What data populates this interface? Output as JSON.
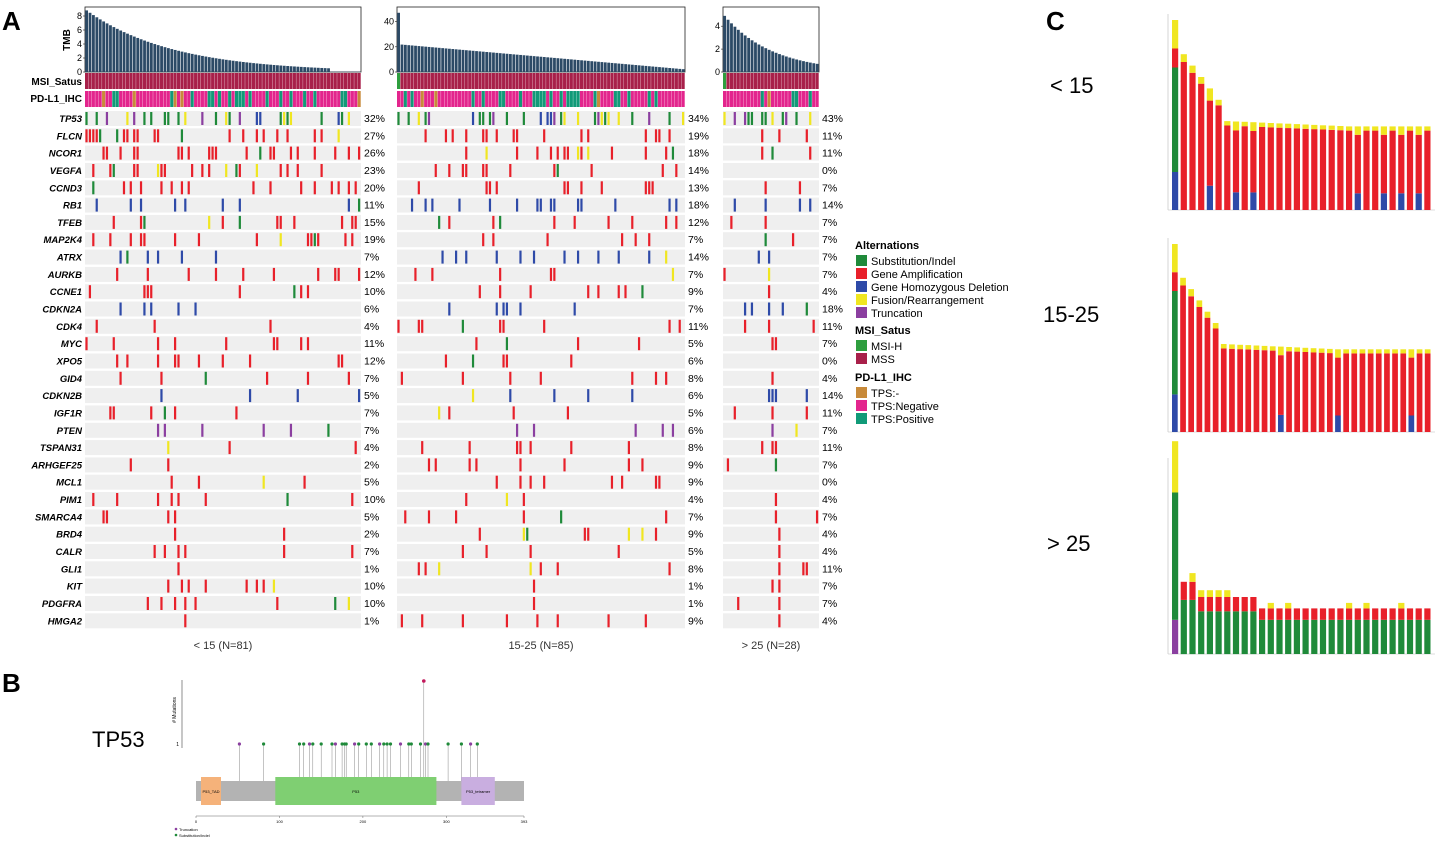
{
  "colors": {
    "substitution": "#1f8a3a",
    "amplification": "#e8202a",
    "deletion": "#2e4aa8",
    "fusion": "#f0e621",
    "truncation": "#8b3fa0",
    "msih": "#2e9e3e",
    "mss": "#a8204a",
    "tps_na": "#c88a3a",
    "tps_neg": "#e3258d",
    "tps_pos": "#119a78",
    "tmb_bar": "#2c4a66",
    "cell_bg": "#efefef"
  },
  "panel_labels": {
    "a": "A",
    "b": "B",
    "c": "C"
  },
  "panel_a": {
    "tmb_label": "TMB",
    "msi_label": "MSI_Satus",
    "pdl1_label": "PD-L1_IHC",
    "groups": [
      {
        "label": "< 15 (N=81)",
        "n": 81,
        "ymax": 9,
        "yticks": [
          "8",
          "6",
          "4",
          "2",
          "0"
        ]
      },
      {
        "label": "15-25 (N=85)",
        "n": 85,
        "ymax": 50,
        "yticks": [
          "40",
          "20",
          "0"
        ]
      },
      {
        "label": "> 25 (N=28)",
        "n": 28,
        "ymax": 5.5,
        "yticks": [
          "4",
          "2",
          "0"
        ]
      }
    ],
    "genes": [
      "TP53",
      "FLCN",
      "NCOR1",
      "VEGFA",
      "CCND3",
      "RB1",
      "TFEB",
      "MAP2K4",
      "ATRX",
      "AURKB",
      "CCNE1",
      "CDKN2A",
      "CDK4",
      "MYC",
      "XPO5",
      "GID4",
      "CDKN2B",
      "IGF1R",
      "PTEN",
      "TSPAN31",
      "ARHGEF25",
      "MCL1",
      "PIM1",
      "SMARCA4",
      "BRD4",
      "CALR",
      "GLI1",
      "KIT",
      "PDGFRA",
      "HMGA2"
    ],
    "pct": [
      [
        "32%",
        "27%",
        "26%",
        "23%",
        "20%",
        "11%",
        "15%",
        "19%",
        "7%",
        "12%",
        "10%",
        "6%",
        "4%",
        "11%",
        "12%",
        "7%",
        "5%",
        "7%",
        "7%",
        "4%",
        "2%",
        "5%",
        "10%",
        "5%",
        "2%",
        "7%",
        "1%",
        "10%",
        "10%",
        "1%"
      ],
      [
        "34%",
        "19%",
        "18%",
        "14%",
        "13%",
        "18%",
        "12%",
        "7%",
        "14%",
        "7%",
        "9%",
        "7%",
        "11%",
        "5%",
        "6%",
        "8%",
        "6%",
        "5%",
        "6%",
        "8%",
        "9%",
        "9%",
        "4%",
        "7%",
        "9%",
        "5%",
        "8%",
        "1%",
        "1%",
        "9%"
      ],
      [
        "43%",
        "11%",
        "11%",
        "0%",
        "7%",
        "14%",
        "7%",
        "7%",
        "7%",
        "7%",
        "4%",
        "18%",
        "11%",
        "7%",
        "0%",
        "4%",
        "14%",
        "11%",
        "7%",
        "11%",
        "7%",
        "0%",
        "4%",
        "7%",
        "4%",
        "4%",
        "11%",
        "7%",
        "7%",
        "4%"
      ]
    ],
    "dominant": [
      "s",
      "a",
      "a",
      "a",
      "a",
      "d",
      "a",
      "a",
      "d",
      "a",
      "a",
      "d",
      "a",
      "a",
      "a",
      "a",
      "d",
      "a",
      "t",
      "a",
      "a",
      "a",
      "a",
      "a",
      "a",
      "a",
      "a",
      "a",
      "a",
      "a"
    ],
    "legend": {
      "alt_title": "Alternations",
      "alt_items": [
        "Substitution/Indel",
        "Gene Amplification",
        "Gene Homozygous Deletion",
        "Fusion/Rearrangement",
        "Truncation"
      ],
      "msi_title": "MSI_Satus",
      "msi_items": [
        "MSI-H",
        "MSS"
      ],
      "pdl1_title": "PD-L1_IHC",
      "pdl1_items": [
        "TPS:-",
        "TPS:Negative",
        "TPS:Positive"
      ]
    }
  },
  "panel_b": {
    "gene": "TP53",
    "ylabel": "# Mutations",
    "ytick": "1",
    "domains": [
      {
        "name": "P53_TAD",
        "start": 6,
        "end": 30,
        "color": "#f5b27a"
      },
      {
        "name": "P53",
        "start": 95,
        "end": 288,
        "color": "#7fcf72"
      },
      {
        "name": "P53_tetramer",
        "start": 318,
        "end": 358,
        "color": "#c9aee0"
      }
    ],
    "protein_length": 393,
    "xticks": [
      "0",
      "100",
      "200",
      "300",
      "393"
    ],
    "legend": [
      "Truncation",
      "Substitution/Indel"
    ]
  },
  "panel_c": {
    "groups": [
      "< 15",
      "15-25",
      "> 25"
    ]
  }
}
